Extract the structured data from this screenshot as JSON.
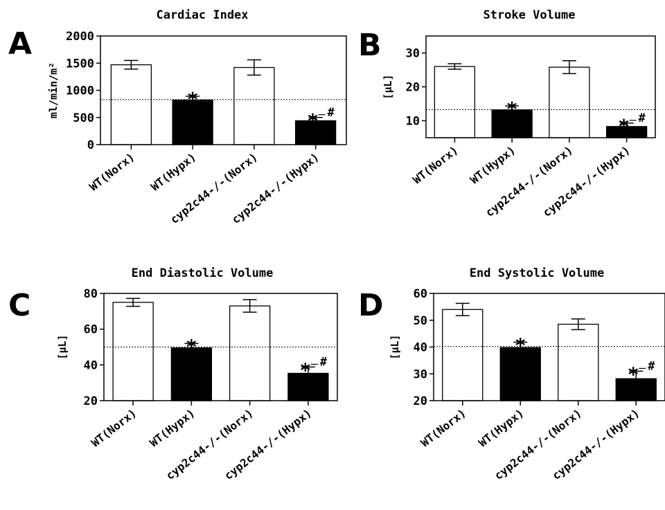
{
  "chart_data": [
    {
      "panel": "A",
      "type": "bar",
      "title": "Cardiac Index",
      "ylabel": "ml/min/m²",
      "ylim": [
        0,
        2000
      ],
      "yticks": [
        0,
        500,
        1000,
        1500,
        2000
      ],
      "categories": [
        "WT(Norx)",
        "WT(Hypx)",
        "cyp2c44-/-(Norx)",
        "cyp2c44-/-(Hypx)"
      ],
      "values": [
        1470,
        820,
        1420,
        440
      ],
      "errors": [
        80,
        70,
        140,
        60
      ],
      "fills": [
        "#ffffff",
        "#000000",
        "#ffffff",
        "#000000"
      ],
      "reference_line": 830,
      "stars": [
        false,
        true,
        false,
        true
      ],
      "hashes": [
        false,
        false,
        false,
        true
      ]
    },
    {
      "panel": "B",
      "type": "bar",
      "title": "Stroke Volume",
      "ylabel": "[μL]",
      "ylim": [
        5,
        35
      ],
      "yticks": [
        10,
        20,
        30
      ],
      "categories": [
        "WT(Norx)",
        "WT(Hypx)",
        "cyp2c44-/-(Norx)",
        "cyp2c44-/-(Hypx)"
      ],
      "values": [
        26,
        13.2,
        25.8,
        8.3
      ],
      "errors": [
        0.8,
        1.2,
        1.9,
        1.0
      ],
      "fills": [
        "#ffffff",
        "#000000",
        "#ffffff",
        "#000000"
      ],
      "reference_line": 13.3,
      "stars": [
        false,
        true,
        false,
        true
      ],
      "hashes": [
        false,
        false,
        false,
        true
      ]
    },
    {
      "panel": "C",
      "type": "bar",
      "title": "End Diastolic Volume",
      "ylabel": "[μL]",
      "ylim": [
        20,
        80
      ],
      "yticks": [
        20,
        40,
        60,
        80
      ],
      "categories": [
        "WT(Norx)",
        "WT(Hypx)",
        "cyp2c44-/-(Norx)",
        "cyp2c44-/-(Hypx)"
      ],
      "values": [
        75,
        49.5,
        73,
        35.3
      ],
      "errors": [
        2.2,
        2.5,
        3.5,
        3.5
      ],
      "fills": [
        "#ffffff",
        "#000000",
        "#ffffff",
        "#000000"
      ],
      "reference_line": 50,
      "stars": [
        false,
        true,
        false,
        true
      ],
      "hashes": [
        false,
        false,
        false,
        true
      ]
    },
    {
      "panel": "D",
      "type": "bar",
      "title": "End Systolic Volume",
      "ylabel": "[μL]",
      "ylim": [
        20,
        60
      ],
      "yticks": [
        20,
        30,
        40,
        50,
        60
      ],
      "categories": [
        "WT(Norx)",
        "WT(Hypx)",
        "cyp2c44-/-(Norx)",
        "cyp2c44-/-(Hypx)"
      ],
      "values": [
        54,
        39.8,
        48.5,
        28.2
      ],
      "errors": [
        2.3,
        2.0,
        2.0,
        2.8
      ],
      "fills": [
        "#ffffff",
        "#000000",
        "#ffffff",
        "#000000"
      ],
      "reference_line": 40.2,
      "stars": [
        false,
        true,
        false,
        true
      ],
      "hashes": [
        false,
        false,
        false,
        true
      ]
    }
  ],
  "markers": {
    "star": "*",
    "hash": "#"
  }
}
